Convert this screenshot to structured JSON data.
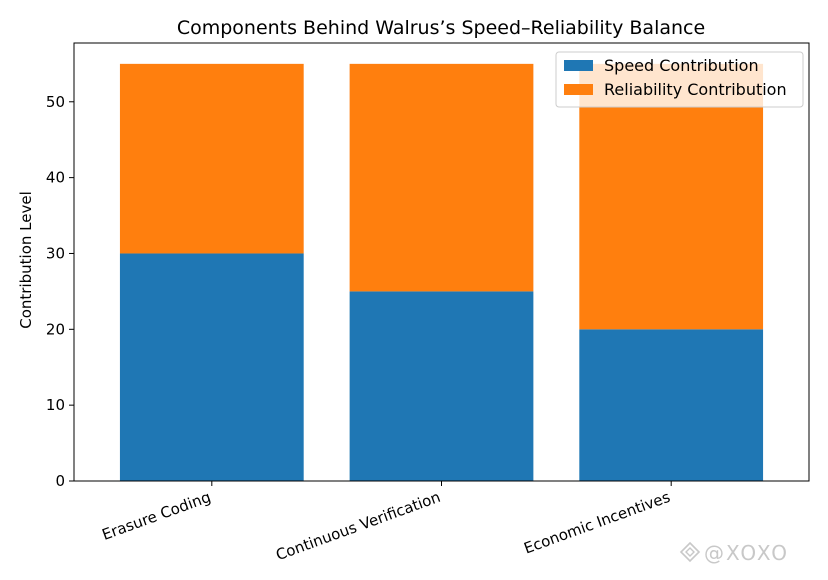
{
  "chart_data": {
    "type": "bar",
    "stacked": true,
    "title": "Components Behind Walrus’s Speed–Reliability Balance",
    "xlabel": "",
    "ylabel": "Contribution Level",
    "categories": [
      "Erasure Coding",
      "Continuous Verification",
      "Economic Incentives"
    ],
    "series": [
      {
        "name": "Speed Contribution",
        "values": [
          30,
          25,
          20
        ],
        "color": "#1f77b4"
      },
      {
        "name": "Reliability Contribution",
        "values": [
          25,
          30,
          35
        ],
        "color": "#ff7f0e"
      }
    ],
    "ylim": [
      0,
      57.75
    ],
    "yticks": [
      0,
      10,
      20,
      30,
      40,
      50
    ],
    "grid": false,
    "legend_position": "top-right"
  },
  "watermark": {
    "text": "@XOXO",
    "icon": "binance-diamond-icon"
  }
}
